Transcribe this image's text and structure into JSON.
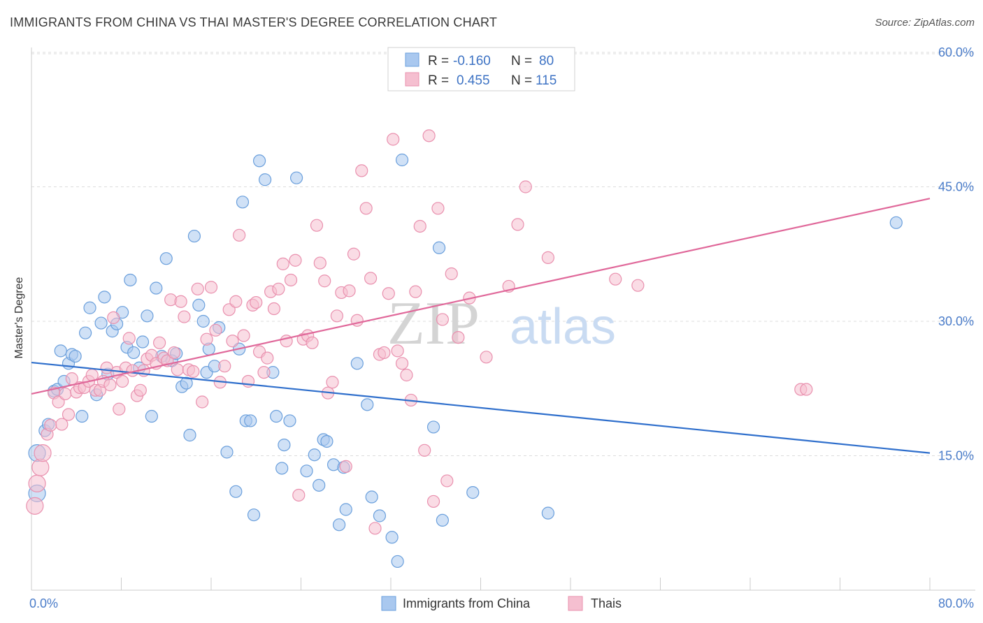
{
  "title": "IMMIGRANTS FROM CHINA VS THAI MASTER'S DEGREE CORRELATION CHART",
  "source": "Source: ZipAtlas.com",
  "watermark": {
    "zip": "ZIP",
    "atlas": "atlas"
  },
  "colors": {
    "blue_fill": "#a9c8ef",
    "blue_stroke": "#6a9fdc",
    "blue_line": "#2f6fcc",
    "pink_fill": "#f5bfd0",
    "pink_stroke": "#e990ae",
    "pink_line": "#e0689a",
    "grid": "#dcdcdc",
    "axis_label": "#4a7cc9"
  },
  "legend": {
    "rows": [
      {
        "r_label": "R =",
        "r_value": "-0.160",
        "n_label": "N =",
        "n_value": "80"
      },
      {
        "r_label": "R =",
        "r_value": "0.455",
        "n_label": "N =",
        "n_value": "115"
      }
    ]
  },
  "bottom_legend": [
    "Immigrants from China",
    "Thais"
  ],
  "chart_data": {
    "type": "scatter",
    "title": "IMMIGRANTS FROM CHINA VS THAI MASTER'S DEGREE CORRELATION CHART",
    "xlabel": "",
    "ylabel": "Master's Degree",
    "xlim": [
      0,
      80
    ],
    "ylim": [
      0,
      60
    ],
    "x_tick_labels": [
      "0.0%",
      "80.0%"
    ],
    "y_ticks": [
      15,
      30,
      45,
      60
    ],
    "y_tick_labels": [
      "15.0%",
      "30.0%",
      "45.0%",
      "60.0%"
    ],
    "grid": true,
    "legend_position": "top-center",
    "series": [
      {
        "name": "Immigrants from China",
        "R": -0.16,
        "N": 80,
        "trend": {
          "x": [
            0,
            80
          ],
          "y": [
            25.4,
            15.3
          ]
        },
        "points": [
          [
            0.5,
            10.8
          ],
          [
            0.5,
            15.3
          ],
          [
            1.2,
            17.8
          ],
          [
            1.5,
            18.5
          ],
          [
            2.0,
            22.2
          ],
          [
            2.3,
            22.4
          ],
          [
            2.6,
            26.7
          ],
          [
            2.9,
            23.3
          ],
          [
            3.3,
            25.3
          ],
          [
            3.6,
            26.3
          ],
          [
            3.9,
            26.1
          ],
          [
            4.5,
            19.4
          ],
          [
            4.8,
            28.7
          ],
          [
            5.2,
            31.5
          ],
          [
            5.8,
            21.8
          ],
          [
            6.2,
            29.8
          ],
          [
            6.5,
            32.7
          ],
          [
            6.8,
            24.1
          ],
          [
            7.2,
            28.9
          ],
          [
            7.6,
            29.7
          ],
          [
            8.1,
            31.0
          ],
          [
            8.5,
            27.1
          ],
          [
            8.8,
            34.6
          ],
          [
            9.1,
            26.5
          ],
          [
            9.6,
            24.8
          ],
          [
            9.9,
            27.7
          ],
          [
            10.3,
            30.6
          ],
          [
            10.7,
            19.4
          ],
          [
            11.1,
            33.7
          ],
          [
            11.6,
            26.1
          ],
          [
            12.0,
            37.0
          ],
          [
            12.5,
            25.6
          ],
          [
            12.9,
            26.4
          ],
          [
            13.4,
            22.7
          ],
          [
            13.8,
            23.1
          ],
          [
            14.1,
            17.3
          ],
          [
            14.5,
            39.5
          ],
          [
            14.9,
            31.8
          ],
          [
            15.3,
            30.0
          ],
          [
            15.6,
            24.3
          ],
          [
            15.8,
            26.9
          ],
          [
            16.3,
            25.0
          ],
          [
            16.7,
            29.3
          ],
          [
            17.4,
            15.4
          ],
          [
            18.2,
            11.0
          ],
          [
            18.5,
            26.9
          ],
          [
            18.8,
            43.3
          ],
          [
            19.1,
            18.9
          ],
          [
            19.5,
            18.9
          ],
          [
            19.8,
            8.4
          ],
          [
            20.3,
            47.9
          ],
          [
            20.8,
            45.8
          ],
          [
            21.5,
            24.3
          ],
          [
            21.8,
            19.4
          ],
          [
            22.3,
            13.6
          ],
          [
            22.5,
            16.2
          ],
          [
            23.0,
            18.9
          ],
          [
            23.6,
            46.0
          ],
          [
            24.5,
            13.3
          ],
          [
            25.2,
            15.1
          ],
          [
            25.6,
            11.7
          ],
          [
            26.0,
            16.8
          ],
          [
            26.3,
            16.6
          ],
          [
            26.9,
            14.0
          ],
          [
            27.4,
            7.3
          ],
          [
            27.8,
            13.7
          ],
          [
            28.0,
            9.0
          ],
          [
            29.0,
            25.3
          ],
          [
            29.9,
            20.7
          ],
          [
            30.3,
            10.4
          ],
          [
            31.0,
            8.3
          ],
          [
            32.1,
            5.9
          ],
          [
            32.6,
            3.2
          ],
          [
            33.0,
            48.0
          ],
          [
            35.8,
            18.2
          ],
          [
            36.3,
            38.2
          ],
          [
            36.6,
            7.8
          ],
          [
            39.3,
            10.9
          ],
          [
            46.0,
            8.6
          ],
          [
            77.0,
            41.0
          ]
        ]
      },
      {
        "name": "Thais",
        "R": 0.455,
        "N": 115,
        "trend": {
          "x": [
            0,
            80
          ],
          "y": [
            21.9,
            43.7
          ]
        },
        "points": [
          [
            0.3,
            9.4
          ],
          [
            0.5,
            11.9
          ],
          [
            0.8,
            13.7
          ],
          [
            1.0,
            15.3
          ],
          [
            1.4,
            17.4
          ],
          [
            1.7,
            18.4
          ],
          [
            2.0,
            22.0
          ],
          [
            2.4,
            21.0
          ],
          [
            2.7,
            18.5
          ],
          [
            3.0,
            21.9
          ],
          [
            3.3,
            19.6
          ],
          [
            3.6,
            23.6
          ],
          [
            4.0,
            22.1
          ],
          [
            4.3,
            22.6
          ],
          [
            4.7,
            22.6
          ],
          [
            5.1,
            23.3
          ],
          [
            5.4,
            24.0
          ],
          [
            5.7,
            22.3
          ],
          [
            6.1,
            22.3
          ],
          [
            6.4,
            23.3
          ],
          [
            6.7,
            24.8
          ],
          [
            7.0,
            22.9
          ],
          [
            7.3,
            30.4
          ],
          [
            7.6,
            24.3
          ],
          [
            7.8,
            20.2
          ],
          [
            8.1,
            23.3
          ],
          [
            8.4,
            24.8
          ],
          [
            8.7,
            28.1
          ],
          [
            9.0,
            24.5
          ],
          [
            9.4,
            21.7
          ],
          [
            9.7,
            22.3
          ],
          [
            10.0,
            24.5
          ],
          [
            10.3,
            25.8
          ],
          [
            10.7,
            26.2
          ],
          [
            11.1,
            25.3
          ],
          [
            11.4,
            27.6
          ],
          [
            11.8,
            25.9
          ],
          [
            12.1,
            25.6
          ],
          [
            12.4,
            32.4
          ],
          [
            12.7,
            26.5
          ],
          [
            13.0,
            24.6
          ],
          [
            13.3,
            32.2
          ],
          [
            13.6,
            30.5
          ],
          [
            14.0,
            24.6
          ],
          [
            14.4,
            24.4
          ],
          [
            14.8,
            33.6
          ],
          [
            15.2,
            21.0
          ],
          [
            15.6,
            28.0
          ],
          [
            16.0,
            33.8
          ],
          [
            16.4,
            29.0
          ],
          [
            16.8,
            23.2
          ],
          [
            17.2,
            25.0
          ],
          [
            17.6,
            31.3
          ],
          [
            17.9,
            27.8
          ],
          [
            18.2,
            32.2
          ],
          [
            18.5,
            39.6
          ],
          [
            18.9,
            28.4
          ],
          [
            19.3,
            23.3
          ],
          [
            19.7,
            31.8
          ],
          [
            20.0,
            32.1
          ],
          [
            20.3,
            26.6
          ],
          [
            20.7,
            24.3
          ],
          [
            21.0,
            25.9
          ],
          [
            21.3,
            33.3
          ],
          [
            21.6,
            31.4
          ],
          [
            22.0,
            33.6
          ],
          [
            22.4,
            36.4
          ],
          [
            22.7,
            27.8
          ],
          [
            23.1,
            34.6
          ],
          [
            23.5,
            36.8
          ],
          [
            23.8,
            10.6
          ],
          [
            24.2,
            28.0
          ],
          [
            24.6,
            28.4
          ],
          [
            25.0,
            27.6
          ],
          [
            25.4,
            40.7
          ],
          [
            25.7,
            36.5
          ],
          [
            26.1,
            34.5
          ],
          [
            26.4,
            22.0
          ],
          [
            26.8,
            23.2
          ],
          [
            27.2,
            30.6
          ],
          [
            27.6,
            33.2
          ],
          [
            28.0,
            13.8
          ],
          [
            28.3,
            33.4
          ],
          [
            28.7,
            37.5
          ],
          [
            29.0,
            30.1
          ],
          [
            29.4,
            46.8
          ],
          [
            29.8,
            42.6
          ],
          [
            30.2,
            34.8
          ],
          [
            30.6,
            6.9
          ],
          [
            31.0,
            26.3
          ],
          [
            31.4,
            26.5
          ],
          [
            31.8,
            33.1
          ],
          [
            32.2,
            50.3
          ],
          [
            32.6,
            26.7
          ],
          [
            33.0,
            25.3
          ],
          [
            33.4,
            24.0
          ],
          [
            33.8,
            21.2
          ],
          [
            34.2,
            33.3
          ],
          [
            34.6,
            40.6
          ],
          [
            35.0,
            15.6
          ],
          [
            35.4,
            50.7
          ],
          [
            35.8,
            9.9
          ],
          [
            36.2,
            42.6
          ],
          [
            36.6,
            30.2
          ],
          [
            37.0,
            12.2
          ],
          [
            37.4,
            35.3
          ],
          [
            38.0,
            28.2
          ],
          [
            39.0,
            32.6
          ],
          [
            40.5,
            26.0
          ],
          [
            42.5,
            33.9
          ],
          [
            43.3,
            40.8
          ],
          [
            44.0,
            45.0
          ],
          [
            46.0,
            37.1
          ],
          [
            52.0,
            34.7
          ],
          [
            54.0,
            34.0
          ],
          [
            68.5,
            22.4
          ],
          [
            69.0,
            22.4
          ]
        ]
      }
    ]
  }
}
